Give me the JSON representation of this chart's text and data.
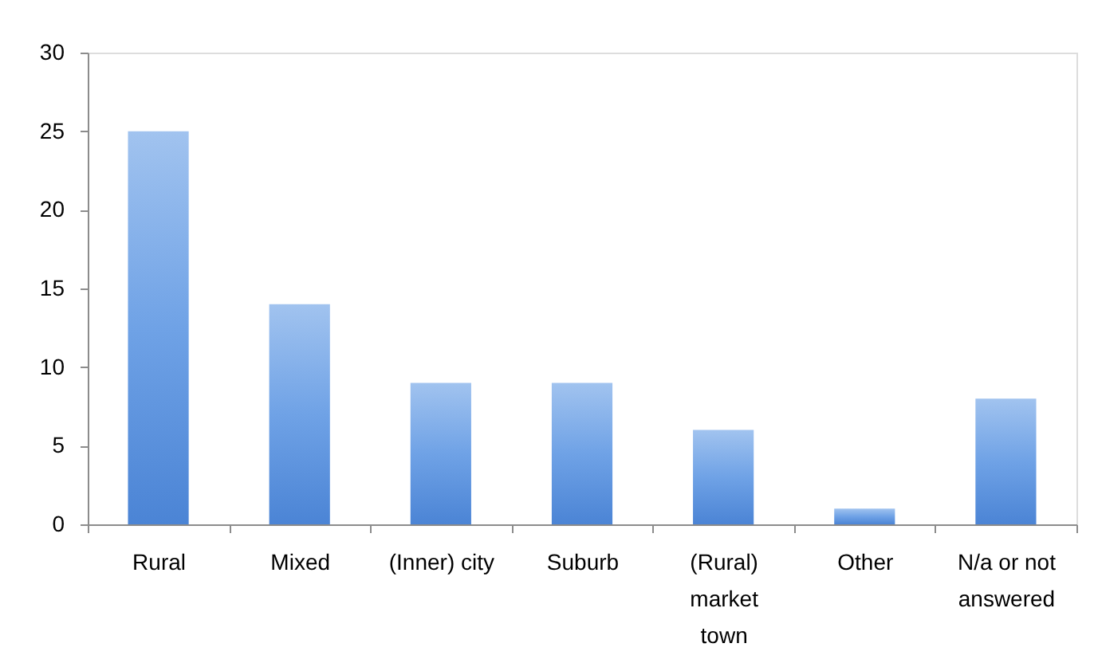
{
  "chart_data": {
    "type": "bar",
    "categories": [
      "Rural",
      "Mixed",
      "(Inner) city",
      "Suburb",
      "(Rural) market town",
      "Other",
      "N/a or not answered"
    ],
    "values": [
      25,
      14,
      9,
      9,
      6,
      1,
      8
    ],
    "color": "#6fa2e6",
    "ylim": [
      0,
      30
    ],
    "yticks": [
      0,
      5,
      10,
      15,
      20,
      25,
      30
    ],
    "grid": false
  }
}
